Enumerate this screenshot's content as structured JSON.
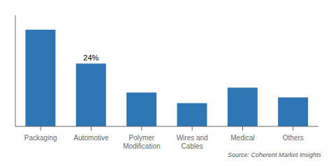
{
  "chart_data": {
    "type": "bar",
    "categories": [
      "Packaging",
      "Automotive",
      "Polymer\nModification",
      "Wires and\nCables",
      "Medical",
      "Others"
    ],
    "values": [
      100,
      65,
      35,
      24,
      40,
      30
    ],
    "color": "#2e75b6",
    "ylim": [
      0,
      115
    ],
    "yticks": [],
    "grid": false,
    "tick_labels": "x",
    "annotations": [
      {
        "text": "24%",
        "category": "Automotive"
      },
      {
        "text": "Source: Coherent Market Insights"
      }
    ]
  }
}
